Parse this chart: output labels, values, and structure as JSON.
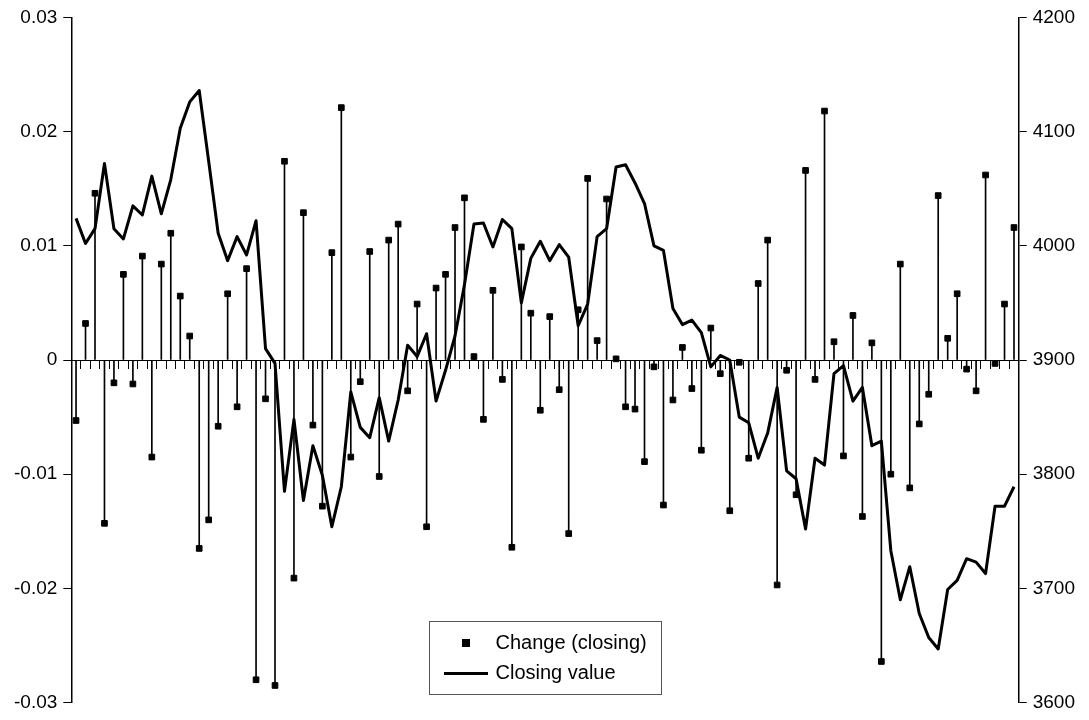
{
  "chart_data": {
    "type": "lollipop",
    "categories": [
      null,
      null,
      null,
      null,
      null,
      null,
      null,
      null,
      null,
      null,
      null,
      null,
      null,
      null,
      null,
      null,
      null,
      null,
      null,
      null,
      null,
      null,
      null,
      null,
      null,
      null,
      null,
      null,
      null,
      null,
      null,
      null,
      null,
      null,
      null,
      null,
      null,
      null,
      null,
      null,
      null,
      null,
      null,
      null,
      null,
      null,
      null,
      null,
      null,
      null,
      null,
      null,
      null,
      null,
      null,
      null,
      null,
      null,
      null,
      null,
      null,
      null,
      null,
      null,
      null,
      null,
      null,
      null,
      null,
      null,
      null,
      null,
      null,
      null,
      null,
      null,
      null,
      null,
      null,
      null,
      null,
      null,
      null,
      null,
      null,
      null,
      null,
      null,
      null,
      null,
      null,
      null,
      null,
      null,
      null,
      null,
      null,
      null,
      null,
      null
    ],
    "series": [
      {
        "name": "Change (closing)",
        "color": "#000000",
        "marker": "square",
        "values": [
          -0.0053,
          0.0032,
          0.0146,
          -0.0143,
          -0.002,
          0.0075,
          -0.0021,
          0.0091,
          -0.0085,
          0.0084,
          0.0111,
          0.0056,
          0.0021,
          -0.0165,
          -0.014,
          -0.0058,
          0.0058,
          -0.0041,
          0.008,
          -0.028,
          -0.0034,
          -0.0285,
          0.0174,
          -0.0191,
          0.0129,
          -0.0057,
          -0.0128,
          0.0094,
          0.0221,
          -0.0085,
          -0.0019,
          0.0095,
          -0.0102,
          0.0105,
          0.0119,
          -0.0027,
          0.0049,
          -0.0146,
          0.0063,
          0.0075,
          0.0116,
          0.0142,
          0.0003,
          -0.0052,
          0.0061,
          -0.0017,
          -0.0164,
          0.0099,
          0.0041,
          -0.0044,
          0.0038,
          -0.0026,
          -0.0152,
          0.0044,
          0.0159,
          0.0017,
          0.0141,
          0.0001,
          -0.0041,
          -0.0043,
          -0.0089,
          -0.0006,
          -0.0127,
          -0.0035,
          0.0011,
          -0.0025,
          -0.0079,
          0.0028,
          -0.0012,
          -0.0132,
          -0.0002,
          -0.0086,
          0.0067,
          0.0105,
          -0.0197,
          -0.0009,
          -0.0118,
          0.0166,
          -0.0017,
          0.0218,
          0.0016,
          -0.0084,
          0.0039,
          -0.0137,
          0.0015,
          -0.0264,
          -0.01,
          0.0084,
          -0.0112,
          -0.0056,
          -0.003,
          0.0144,
          0.0019,
          0.0058,
          -0.0008,
          -0.0027,
          0.0162,
          -0.0003,
          0.0049,
          0.0116
        ]
      },
      {
        "name": "Closing value",
        "type": "line",
        "axis": "y2",
        "color": "#000000",
        "marker": "none",
        "line_style": "solid",
        "values": [
          4024,
          4002,
          4015,
          4072,
          4015,
          4006,
          4035,
          4027,
          4061,
          4028,
          4058,
          4103,
          4126,
          4136,
          4074,
          4011,
          3987,
          4008,
          3992,
          4022,
          3910,
          3897,
          3785,
          3848,
          3777,
          3825,
          3799,
          3754,
          3789,
          3872,
          3841,
          3832,
          3867,
          3829,
          3865,
          3913,
          3903,
          3923,
          3864,
          3891,
          3921,
          3966,
          4019,
          4020,
          3999,
          4023,
          4015,
          3950,
          3989,
          4004,
          3987,
          4001,
          3990,
          3930,
          3949,
          4008,
          4015,
          4069,
          4071,
          4055,
          4037,
          4000,
          3996,
          3945,
          3931,
          3935,
          3924,
          3894,
          3904,
          3900,
          3850,
          3845,
          3814,
          3836,
          3876,
          3803,
          3796,
          3752,
          3814,
          3808,
          3888,
          3895,
          3864,
          3876,
          3825,
          3829,
          3733,
          3690,
          3719,
          3678,
          3657,
          3647,
          3699,
          3707,
          3726,
          3723,
          3713,
          3772,
          3772,
          3789
        ]
      }
    ],
    "ylim": [
      -0.03,
      0.03
    ],
    "yticks": [
      -0.03,
      -0.02,
      -0.01,
      0,
      0.01,
      0.02,
      0.03
    ],
    "y2lim": [
      3600,
      4200
    ],
    "y2ticks": [
      3600,
      3700,
      3800,
      3900,
      4000,
      4100,
      4200
    ],
    "legend": "bottom"
  }
}
